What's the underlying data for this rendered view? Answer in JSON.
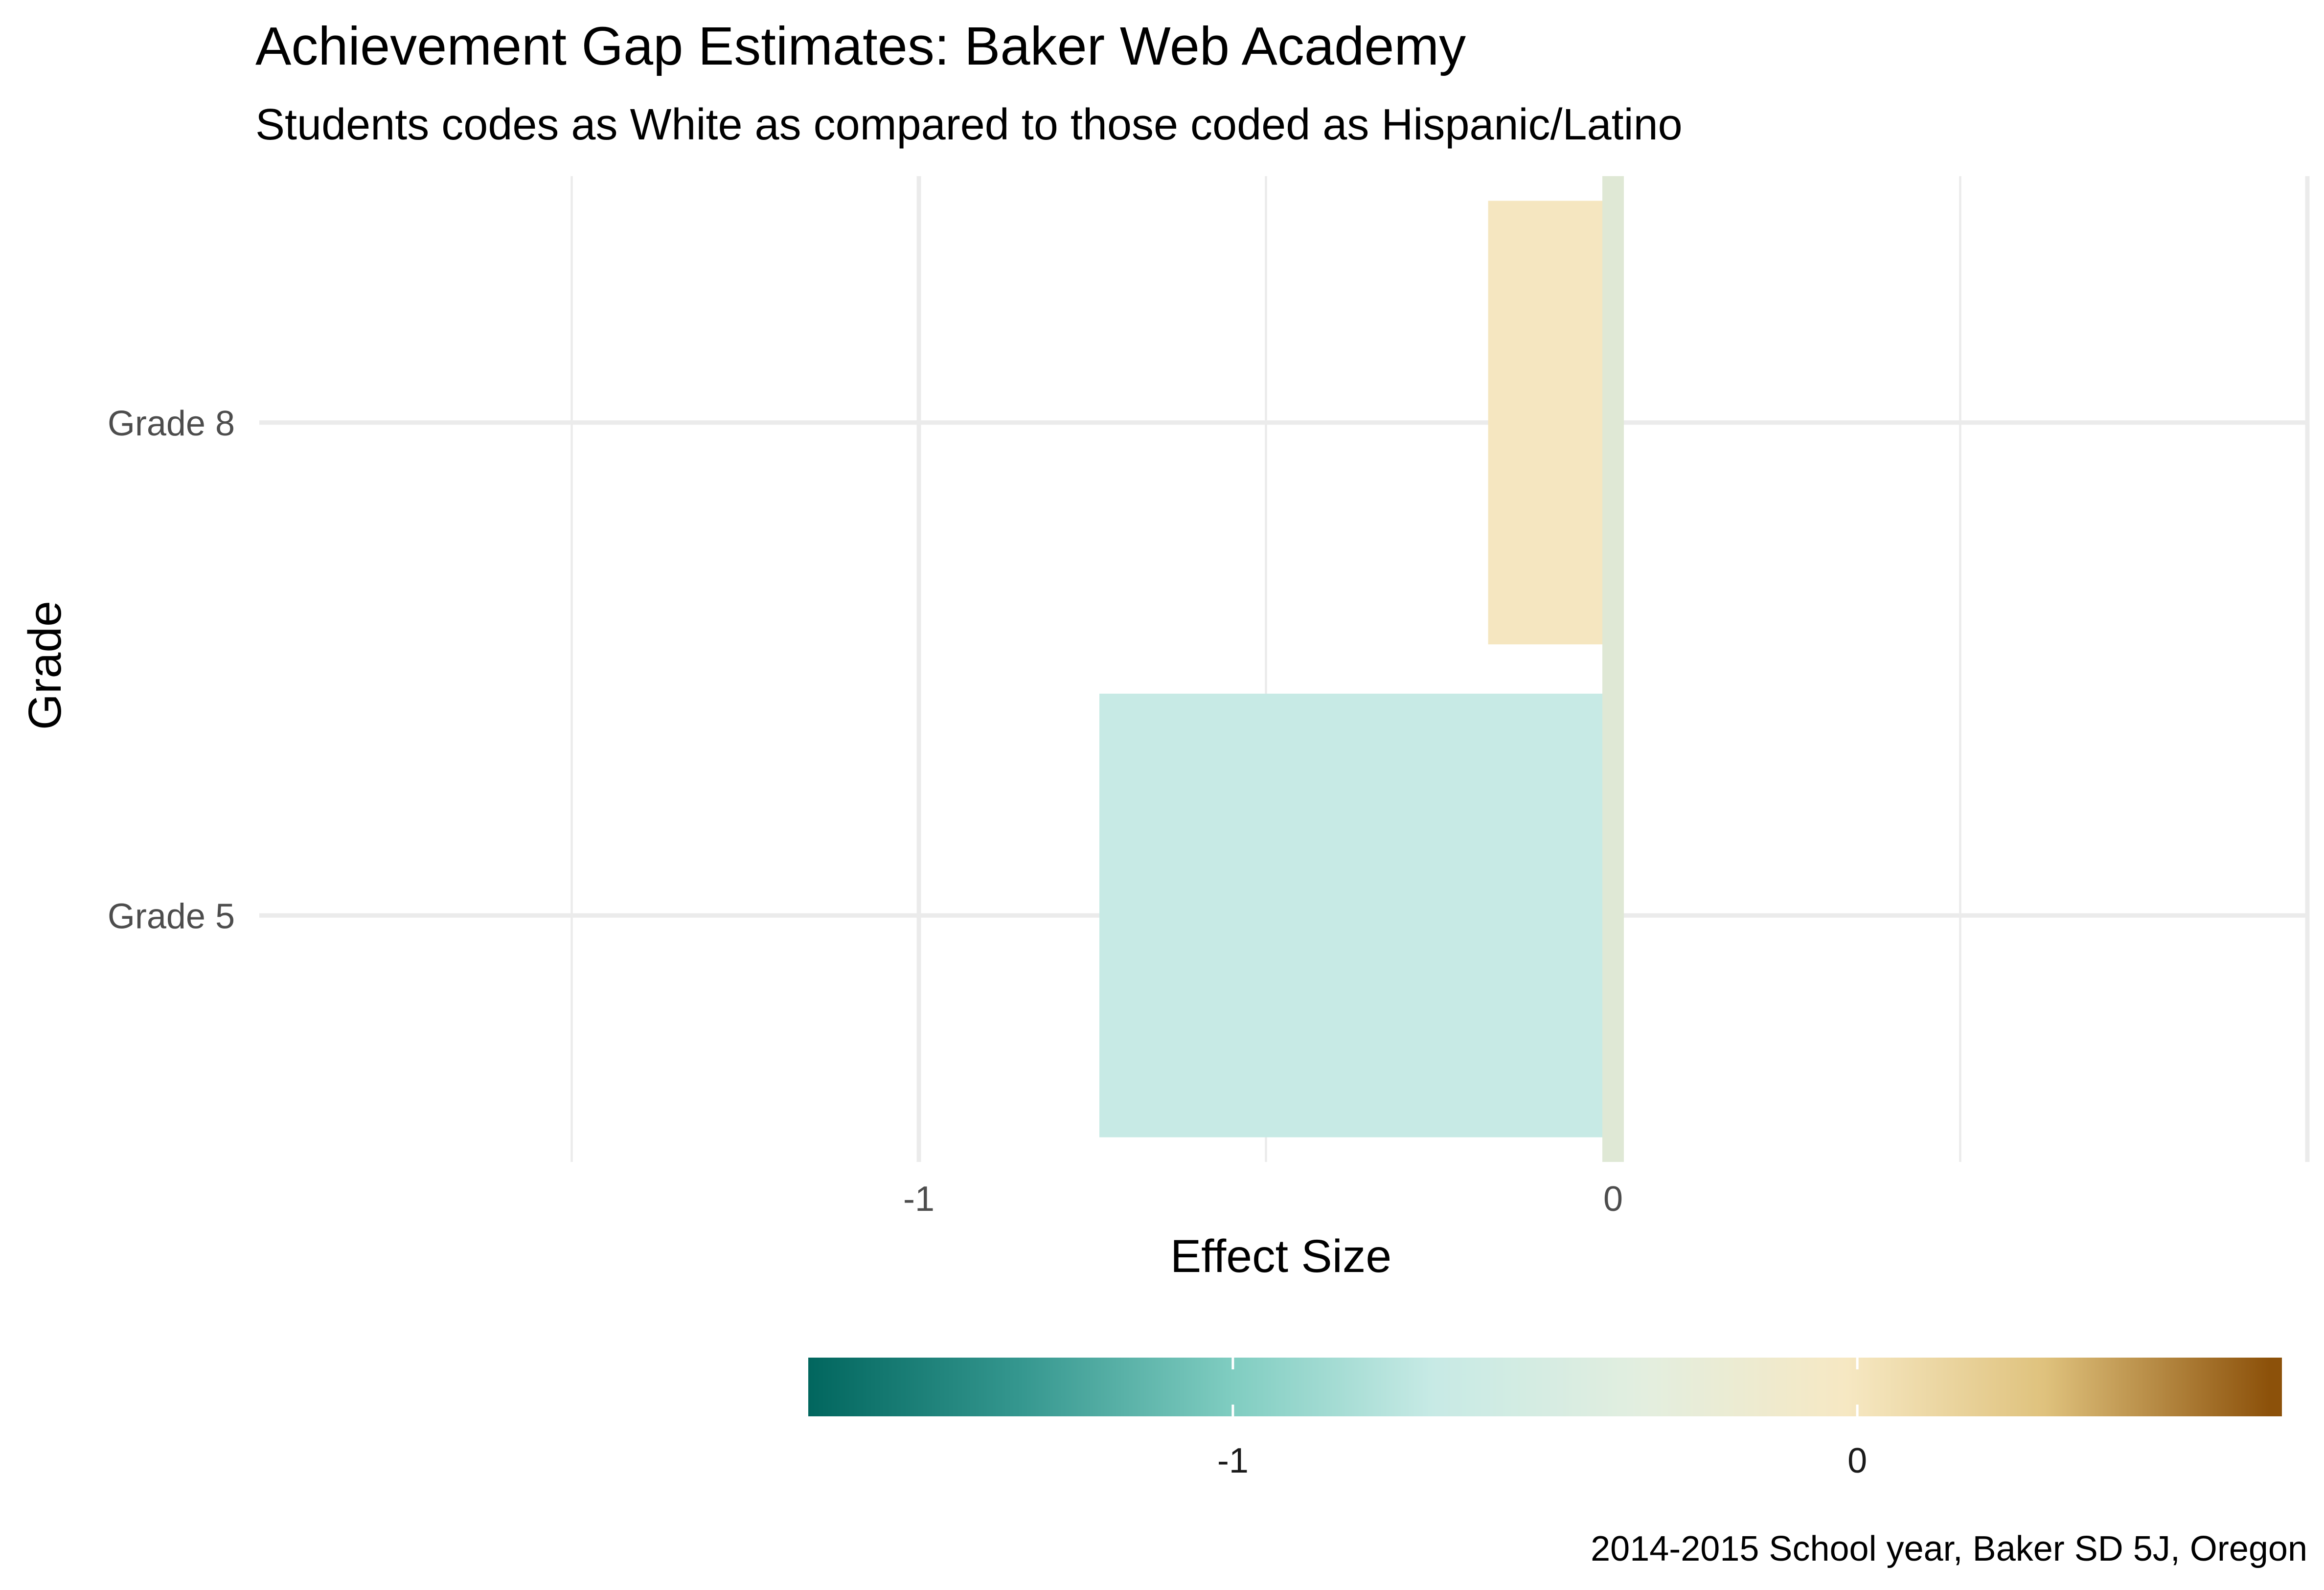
{
  "chart_data": {
    "type": "bar",
    "orientation": "horizontal",
    "title": "Achievement Gap Estimates: Baker Web Academy",
    "subtitle": "Students codes as White as compared to those coded as Hispanic/Latino",
    "caption": "2014-2015 School year, Baker SD 5J, Oregon",
    "xlabel": "Effect Size",
    "ylabel": "Grade",
    "categories": [
      "Grade 5",
      "Grade 8"
    ],
    "values": [
      -0.74,
      -0.18
    ],
    "xlim": [
      -1.95,
      1.0
    ],
    "xticks": [
      -1,
      0
    ],
    "xtick_labels": [
      "-1",
      "0"
    ],
    "reference_line_x": 0,
    "grid": true,
    "legend": {
      "type": "colorbar",
      "placement": "bottom",
      "range": [
        -1.68,
        0.68
      ],
      "ticks": [
        -1,
        0
      ],
      "tick_labels": [
        "-1",
        "0"
      ],
      "palette": "BrBG (reversed)",
      "stops": [
        {
          "value": -1.68,
          "color": "#01665e"
        },
        {
          "value": -1.34,
          "color": "#35978f"
        },
        {
          "value": -1.0,
          "color": "#80cdc1"
        },
        {
          "value": -0.68,
          "color": "#c7eae5"
        },
        {
          "value": -0.34,
          "color": "#e3eedf"
        },
        {
          "value": -0.02,
          "color": "#f6e8c3"
        },
        {
          "value": 0.3,
          "color": "#dfc27d"
        },
        {
          "value": 0.66,
          "color": "#8c510a"
        }
      ]
    },
    "bar_colors": [
      "#c7eae5",
      "#f5e6c0"
    ]
  }
}
